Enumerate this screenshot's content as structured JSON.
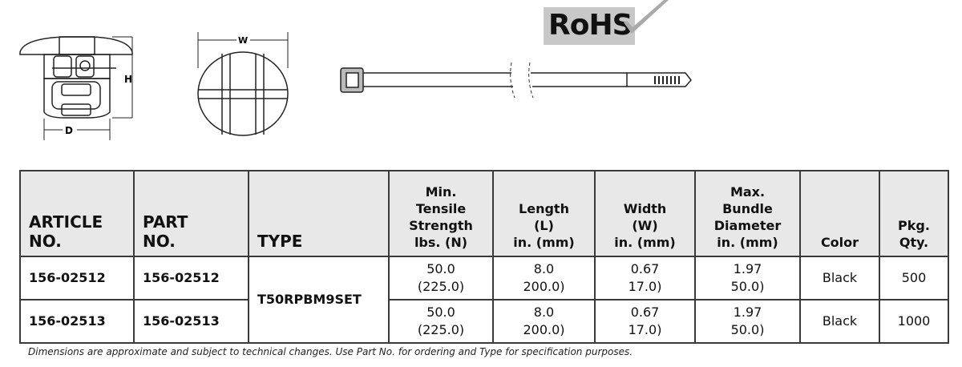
{
  "drawings": {
    "dimension_labels": {
      "height": "H",
      "depth": "D",
      "width": "W"
    },
    "rohs_logo": "RoHS"
  },
  "table": {
    "headers": [
      "ARTICLE NO.",
      "PART NO.",
      "TYPE",
      "Min. Tensile Strength lbs. (N)",
      "Length (L) in. (mm)",
      "Width (W) in. (mm)",
      "Max. Bundle Diameter in. (mm)",
      "Color",
      "Pkg. Qty."
    ],
    "header_lines": [
      [
        "ARTICLE",
        "NO."
      ],
      [
        "PART",
        "NO."
      ],
      [
        "TYPE"
      ],
      [
        "Min.",
        "Tensile",
        "Strength",
        "lbs. (N)"
      ],
      [
        "Length",
        "(L)",
        "in. (mm)"
      ],
      [
        "Width",
        "(W)",
        "in. (mm)"
      ],
      [
        "Max.",
        "Bundle",
        "Diameter",
        "in. (mm)"
      ],
      [
        "Color"
      ],
      [
        "Pkg.",
        "Qty."
      ]
    ],
    "type": "T50RPBM9SET",
    "rows": [
      {
        "article": "156-02512",
        "part": "156-02512",
        "tensile": [
          "50.0",
          "(225.0)"
        ],
        "length": [
          "8.0",
          "200.0)"
        ],
        "width": [
          "0.67",
          "17.0)"
        ],
        "bundle": [
          "1.97",
          "50.0)"
        ],
        "color": "Black",
        "qty": "500"
      },
      {
        "article": "156-02513",
        "part": "156-02513",
        "tensile": [
          "50.0",
          "(225.0)"
        ],
        "length": [
          "8.0",
          "200.0)"
        ],
        "width": [
          "0.67",
          "17.0)"
        ],
        "bundle": [
          "1.97",
          "50.0)"
        ],
        "color": "Black",
        "qty": "1000"
      }
    ]
  },
  "footnote": "Dimensions are approximate and subject to technical changes. Use Part No. for ordering and Type for specification purposes.",
  "colors": {
    "header_bg": "#e8e8e8",
    "border": "#3a3a3a",
    "rohs_bg": "#c8c8c8"
  }
}
